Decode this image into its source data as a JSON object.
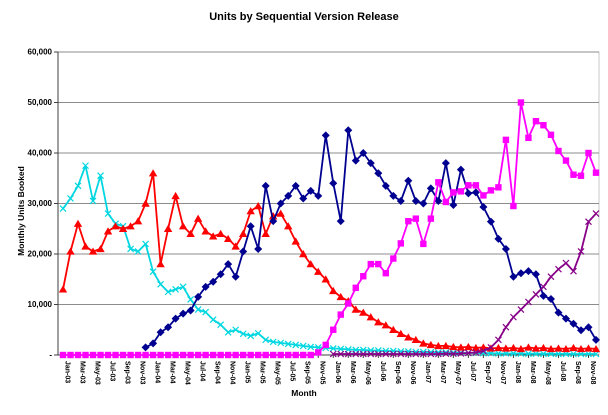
{
  "title": "Units by Sequential Version Release",
  "y_axis": {
    "title": "Monthly Units Booked",
    "tick_labels": [
      "-",
      "10,000",
      "20,000",
      "30,000",
      "40,000",
      "50,000",
      "60,000"
    ]
  },
  "x_axis": {
    "title": "Month",
    "label_every_n_months": 2
  },
  "colors": {
    "grid": "#8C8C8C",
    "border": "#C9C9C9",
    "axis": "#3F3F3F",
    "text": "#000000"
  },
  "chart_data": {
    "type": "line",
    "title": "Units by Sequential Version Release",
    "xlabel": "Month",
    "ylabel": "Monthly Units Booked",
    "ylim": [
      0,
      60000
    ],
    "y_step": 10000,
    "grid": true,
    "legend": "none",
    "categories": [
      "Jan-03",
      "Feb-03",
      "Mar-03",
      "Apr-03",
      "May-03",
      "Jun-03",
      "Jul-03",
      "Aug-03",
      "Sep-03",
      "Oct-03",
      "Nov-03",
      "Dec-03",
      "Jan-04",
      "Feb-04",
      "Mar-04",
      "Apr-04",
      "May-04",
      "Jun-04",
      "Jul-04",
      "Aug-04",
      "Sep-04",
      "Oct-04",
      "Nov-04",
      "Dec-04",
      "Jan-05",
      "Feb-05",
      "Mar-05",
      "Apr-05",
      "May-05",
      "Jun-05",
      "Jul-05",
      "Aug-05",
      "Sep-05",
      "Oct-05",
      "Nov-05",
      "Dec-05",
      "Jan-06",
      "Feb-06",
      "Mar-06",
      "Apr-06",
      "May-06",
      "Jun-06",
      "Jul-06",
      "Aug-06",
      "Sep-06",
      "Oct-06",
      "Nov-06",
      "Dec-06",
      "Jan-07",
      "Feb-07",
      "Mar-07",
      "Apr-07",
      "May-07",
      "Jun-07",
      "Jul-07",
      "Aug-07",
      "Sep-07",
      "Oct-07",
      "Nov-07",
      "Dec-07",
      "Jan-08",
      "Feb-08",
      "Mar-08",
      "Apr-08",
      "May-08",
      "Jun-08",
      "Jul-08",
      "Aug-08",
      "Sep-08",
      "Oct-08",
      "Nov-08",
      "Dec-08"
    ],
    "series": [
      {
        "id": "release-1",
        "color": "#00D7E0",
        "marker": "x",
        "values": [
          29000,
          31000,
          33500,
          37500,
          30500,
          35500,
          28000,
          26000,
          25500,
          21000,
          20500,
          22000,
          16500,
          14000,
          12500,
          13000,
          13500,
          11000,
          9000,
          8500,
          7000,
          6000,
          4500,
          5000,
          4200,
          3800,
          4300,
          3000,
          2600,
          2400,
          2200,
          2000,
          1800,
          1600,
          1500,
          1400,
          1300,
          1200,
          1100,
          1000,
          1000,
          900,
          900,
          800,
          800,
          700,
          700,
          600,
          600,
          550,
          500,
          500,
          450,
          450,
          400,
          400,
          350,
          350,
          300,
          300,
          300,
          280,
          260,
          250,
          240,
          230,
          220,
          210,
          200,
          200,
          200,
          200
        ]
      },
      {
        "id": "release-2",
        "color": "#FF0000",
        "marker": "triangle",
        "values": [
          13000,
          20500,
          26000,
          21500,
          20500,
          21000,
          24500,
          25500,
          25000,
          25500,
          26500,
          30000,
          36000,
          18000,
          25000,
          31500,
          25500,
          24000,
          27000,
          24500,
          23500,
          24000,
          23000,
          21500,
          24000,
          28500,
          29500,
          24000,
          27500,
          28000,
          25500,
          22500,
          20000,
          18000,
          16500,
          15000,
          12700,
          11500,
          10700,
          9000,
          8400,
          7500,
          6500,
          5900,
          5000,
          4200,
          3500,
          3000,
          2300,
          2000,
          1800,
          1800,
          1600,
          1500,
          1600,
          1400,
          1500,
          1300,
          1400,
          1300,
          1400,
          1200,
          1500,
          1300,
          1400,
          1200,
          1300,
          1200,
          1400,
          1200,
          1300,
          1200
        ]
      },
      {
        "id": "release-3",
        "color": "#000090",
        "marker": "diamond",
        "values": [
          null,
          null,
          null,
          null,
          null,
          null,
          null,
          null,
          null,
          null,
          null,
          1500,
          2300,
          4500,
          5500,
          7200,
          8200,
          8800,
          11500,
          13500,
          14500,
          16000,
          18000,
          15500,
          20500,
          25500,
          21000,
          33500,
          26500,
          30000,
          31500,
          33500,
          31000,
          32500,
          31500,
          43500,
          34000,
          26500,
          44500,
          38500,
          40000,
          38000,
          36000,
          33500,
          31500,
          30500,
          34500,
          30500,
          30000,
          33000,
          30500,
          38000,
          29700,
          36700,
          32000,
          32200,
          29300,
          26400,
          23000,
          21000,
          15500,
          16200,
          16600,
          16000,
          11700,
          11100,
          8400,
          7200,
          6200,
          4900,
          5500,
          3000
        ]
      },
      {
        "id": "release-4",
        "color": "#FF00FF",
        "marker": "square",
        "values": [
          0,
          0,
          0,
          0,
          0,
          0,
          0,
          0,
          0,
          0,
          0,
          0,
          0,
          0,
          0,
          0,
          0,
          0,
          0,
          0,
          0,
          0,
          0,
          0,
          0,
          0,
          0,
          0,
          0,
          0,
          0,
          0,
          0,
          0,
          500,
          2000,
          5000,
          8000,
          10200,
          13300,
          15600,
          18000,
          18000,
          16200,
          19100,
          22100,
          26500,
          27000,
          22000,
          27000,
          34200,
          30300,
          32200,
          32400,
          33600,
          33600,
          31600,
          32600,
          33200,
          42600,
          29500,
          50000,
          43000,
          46300,
          45500,
          43600,
          40400,
          38500,
          35700,
          35500,
          40000,
          36100
        ]
      },
      {
        "id": "release-5",
        "color": "#880088",
        "marker": "x",
        "values": [
          null,
          null,
          null,
          null,
          null,
          null,
          null,
          null,
          null,
          null,
          null,
          null,
          null,
          null,
          null,
          null,
          null,
          null,
          null,
          null,
          null,
          null,
          null,
          null,
          null,
          null,
          null,
          null,
          null,
          null,
          null,
          null,
          null,
          null,
          null,
          null,
          200,
          200,
          200,
          200,
          200,
          200,
          200,
          200,
          200,
          200,
          200,
          200,
          200,
          200,
          200,
          250,
          250,
          300,
          400,
          500,
          800,
          1500,
          3000,
          5500,
          7500,
          9000,
          10500,
          12000,
          13500,
          15500,
          17000,
          18200,
          16600,
          20500,
          26400,
          28000
        ]
      }
    ]
  }
}
